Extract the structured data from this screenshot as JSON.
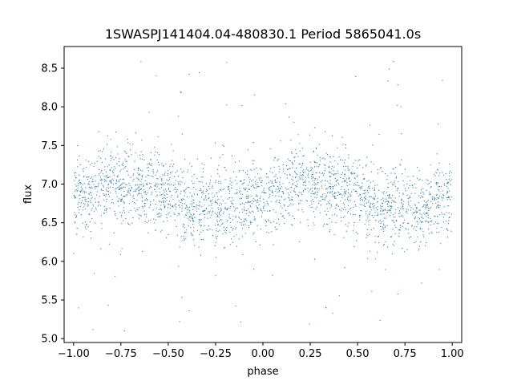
{
  "chart_data": {
    "type": "scatter",
    "title": "1SWASPJ141404.04-480830.1 Period 5865041.0s",
    "xlabel": "phase",
    "ylabel": "flux",
    "xlim": [
      -1.05,
      1.05
    ],
    "ylim": [
      4.95,
      8.78
    ],
    "x_ticks": [
      -1.0,
      -0.75,
      -0.5,
      -0.25,
      0.0,
      0.25,
      0.5,
      0.75,
      1.0
    ],
    "x_tick_labels": [
      "−1.00",
      "−0.75",
      "−0.50",
      "−0.25",
      "0.00",
      "0.25",
      "0.50",
      "0.75",
      "1.00"
    ],
    "y_ticks": [
      5.0,
      5.5,
      6.0,
      6.5,
      7.0,
      7.5,
      8.0,
      8.5
    ],
    "y_tick_labels": [
      "5.0",
      "5.5",
      "6.0",
      "6.5",
      "7.0",
      "7.5",
      "8.0",
      "8.5"
    ],
    "grid": false,
    "marker_color": "#1f77b4",
    "series": [
      {
        "phase_profile": [
          [
            -1.0,
            6.8
          ],
          [
            -0.95,
            6.9
          ],
          [
            -0.9,
            6.85
          ],
          [
            -0.85,
            7.0
          ],
          [
            -0.8,
            7.05
          ],
          [
            -0.75,
            6.95
          ],
          [
            -0.7,
            7.05
          ],
          [
            -0.65,
            6.95
          ],
          [
            -0.6,
            6.95
          ],
          [
            -0.55,
            6.9
          ],
          [
            -0.5,
            6.85
          ],
          [
            -0.45,
            6.8
          ],
          [
            -0.4,
            6.7
          ],
          [
            -0.35,
            6.7
          ],
          [
            -0.3,
            6.75
          ],
          [
            -0.25,
            6.7
          ],
          [
            -0.2,
            6.7
          ],
          [
            -0.15,
            6.7
          ],
          [
            -0.1,
            6.75
          ],
          [
            -0.05,
            6.85
          ],
          [
            0.0,
            6.8
          ],
          [
            0.05,
            6.9
          ],
          [
            0.1,
            6.85
          ],
          [
            0.15,
            7.0
          ],
          [
            0.2,
            7.05
          ],
          [
            0.25,
            6.95
          ],
          [
            0.3,
            7.05
          ],
          [
            0.35,
            6.95
          ],
          [
            0.4,
            6.95
          ],
          [
            0.45,
            6.9
          ],
          [
            0.5,
            6.85
          ],
          [
            0.55,
            6.8
          ],
          [
            0.6,
            6.7
          ],
          [
            0.65,
            6.7
          ],
          [
            0.7,
            6.75
          ],
          [
            0.75,
            6.7
          ],
          [
            0.8,
            6.7
          ],
          [
            0.85,
            6.7
          ],
          [
            0.9,
            6.75
          ],
          [
            0.95,
            6.85
          ],
          [
            1.0,
            6.8
          ]
        ],
        "scatter_sigma": 0.25,
        "outlier_range": [
          5.1,
          8.6
        ]
      }
    ]
  }
}
